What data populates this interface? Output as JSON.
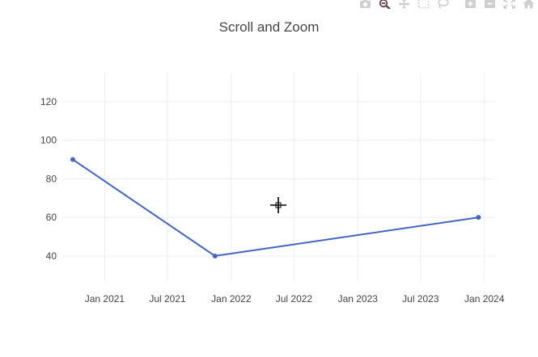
{
  "modebar": {
    "buttons": [
      {
        "name": "camera-icon",
        "title": "Download plot as a png"
      },
      {
        "name": "zoom-icon",
        "title": "Zoom",
        "active": true
      },
      {
        "name": "pan-icon",
        "title": "Pan"
      },
      {
        "name": "box-select-icon",
        "title": "Box Select"
      },
      {
        "name": "lasso-select-icon",
        "title": "Lasso Select"
      },
      {
        "name": "zoom-in-icon",
        "title": "Zoom in"
      },
      {
        "name": "zoom-out-icon",
        "title": "Zoom out"
      },
      {
        "name": "autoscale-icon",
        "title": "Autoscale"
      },
      {
        "name": "reset-axes-icon",
        "title": "Reset axes"
      }
    ],
    "color": "#cfcfcf",
    "active_color": "#6a4b5b"
  },
  "chart_data": {
    "type": "line",
    "title": "Scroll and Zoom",
    "xlabel": "",
    "ylabel": "",
    "x_type": "date",
    "x": [
      "2020-10-01",
      "2021-11-15",
      "2023-12-15"
    ],
    "series": [
      {
        "values": [
          90,
          40,
          60
        ],
        "color": "#4566c0",
        "mode": "lines+markers"
      }
    ],
    "x_ticks": [
      {
        "date": "2021-01-01",
        "label": "Jan 2021"
      },
      {
        "date": "2021-07-01",
        "label": "Jul 2021"
      },
      {
        "date": "2022-01-01",
        "label": "Jan 2022"
      },
      {
        "date": "2022-07-01",
        "label": "Jul 2022"
      },
      {
        "date": "2023-01-01",
        "label": "Jan 2023"
      },
      {
        "date": "2023-07-01",
        "label": "Jul 2023"
      },
      {
        "date": "2024-01-01",
        "label": "Jan 2024"
      }
    ],
    "y_ticks": [
      40,
      60,
      80,
      100,
      120
    ],
    "xlim": [
      "2020-09-03",
      "2024-02-01"
    ],
    "ylim": [
      27,
      135
    ],
    "grid": true
  }
}
